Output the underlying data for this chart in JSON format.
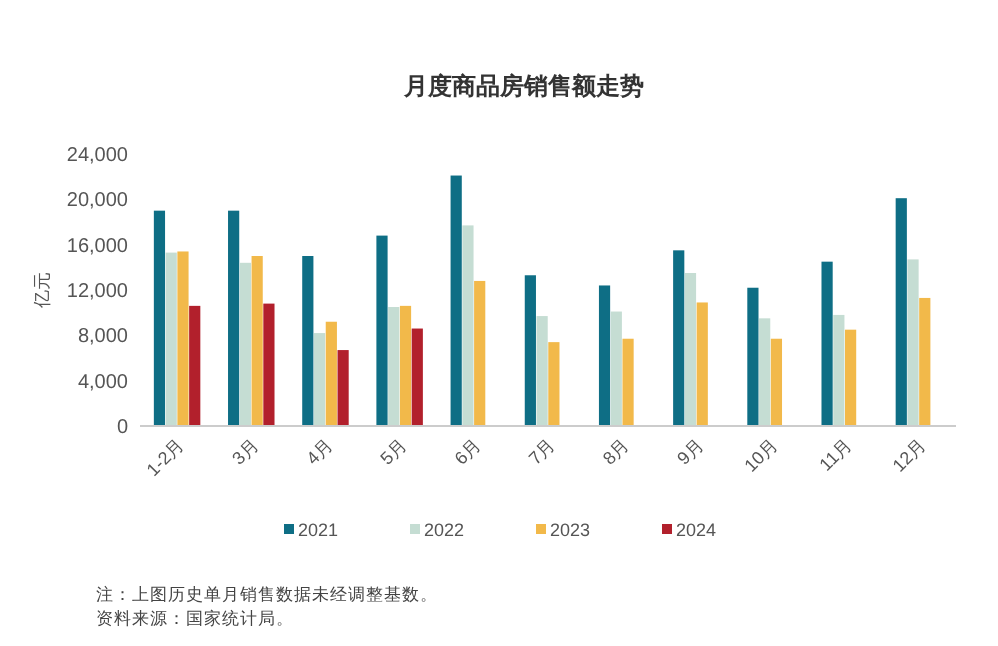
{
  "chart_data": {
    "type": "bar",
    "title": "月度商品房销售额走势",
    "ylabel": "亿元",
    "categories": [
      "1-2月",
      "3月",
      "4月",
      "5月",
      "6月",
      "7月",
      "8月",
      "9月",
      "10月",
      "11月",
      "12月"
    ],
    "series": [
      {
        "name": "2021",
        "color": "#0e6e85",
        "values": [
          19000,
          19000,
          15000,
          16800,
          22100,
          13300,
          12400,
          15500,
          12200,
          14500,
          20100
        ]
      },
      {
        "name": "2022",
        "color": "#c5ddd3",
        "values": [
          15300,
          14400,
          8200,
          10500,
          17700,
          9700,
          10100,
          13500,
          9500,
          9800,
          14700
        ]
      },
      {
        "name": "2023",
        "color": "#f2b94a",
        "values": [
          15400,
          15000,
          9200,
          10600,
          12800,
          7400,
          7700,
          10900,
          7700,
          8500,
          11300
        ]
      },
      {
        "name": "2024",
        "color": "#b2202c",
        "values": [
          10600,
          10800,
          6700,
          8600,
          null,
          null,
          null,
          null,
          null,
          null,
          null
        ]
      }
    ],
    "ylim": [
      0,
      24000
    ],
    "yticks": [
      {
        "value": 0,
        "label": "0"
      },
      {
        "value": 4000,
        "label": "4,000"
      },
      {
        "value": 8000,
        "label": "8,000"
      },
      {
        "value": 12000,
        "label": "12,000"
      },
      {
        "value": 16000,
        "label": "16,000"
      },
      {
        "value": 20000,
        "label": "20,000"
      },
      {
        "value": 24000,
        "label": "24,000"
      }
    ],
    "legend": "bottom",
    "annotations": [
      "注：上图历史单月销售数据未经调整基数。",
      "资料来源：国家统计局。"
    ]
  }
}
